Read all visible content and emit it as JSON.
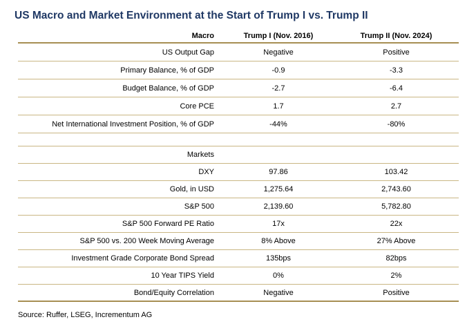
{
  "title": "US Macro and Market Environment at the Start of Trump I vs. Trump II",
  "source": "Source: Ruffer, LSEG, Incrementum AG",
  "colors": {
    "title_navy": "#1F3864",
    "gold_line_thick": "#A68E52",
    "gold_line_thin": "#C9B683",
    "body_text": "#000000"
  },
  "chart_data": {
    "type": "table",
    "title": "US Macro and Market Environment at the Start of Trump I vs. Trump II",
    "columns": [
      "Macro",
      "Trump I (Nov. 2016)",
      "Trump II (Nov. 2024)"
    ],
    "sections": [
      {
        "name": "Macro",
        "rows": [
          {
            "label": "US Output Gap",
            "trump1": "Negative",
            "trump2": "Positive"
          },
          {
            "label": "Primary Balance, % of GDP",
            "trump1": "-0.9",
            "trump2": "-3.3"
          },
          {
            "label": "Budget Balance, % of GDP",
            "trump1": "-2.7",
            "trump2": "-6.4"
          },
          {
            "label": "Core PCE",
            "trump1": "1.7",
            "trump2": "2.7"
          },
          {
            "label": "Net International Investment Position, % of GDP",
            "trump1": "-44%",
            "trump2": "-80%"
          }
        ]
      },
      {
        "name": "Markets",
        "header_row": "Markets",
        "rows": [
          {
            "label": "DXY",
            "trump1": "97.86",
            "trump2": "103.42"
          },
          {
            "label": "Gold, in USD",
            "trump1": "1,275.64",
            "trump2": "2,743.60"
          },
          {
            "label": "S&P 500",
            "trump1": "2,139.60",
            "trump2": "5,782.80"
          },
          {
            "label": "S&P 500 Forward PE Ratio",
            "trump1": "17x",
            "trump2": "22x"
          },
          {
            "label": "S&P 500 vs. 200 Week Moving Average",
            "trump1": "8% Above",
            "trump2": "27% Above"
          },
          {
            "label": "Investment Grade Corporate Bond Spread",
            "trump1": "135bps",
            "trump2": "82bps"
          },
          {
            "label": "10 Year TIPS Yield",
            "trump1": "0%",
            "trump2": "2%"
          },
          {
            "label": "Bond/Equity Correlation",
            "trump1": "Negative",
            "trump2": "Positive"
          }
        ]
      }
    ]
  }
}
